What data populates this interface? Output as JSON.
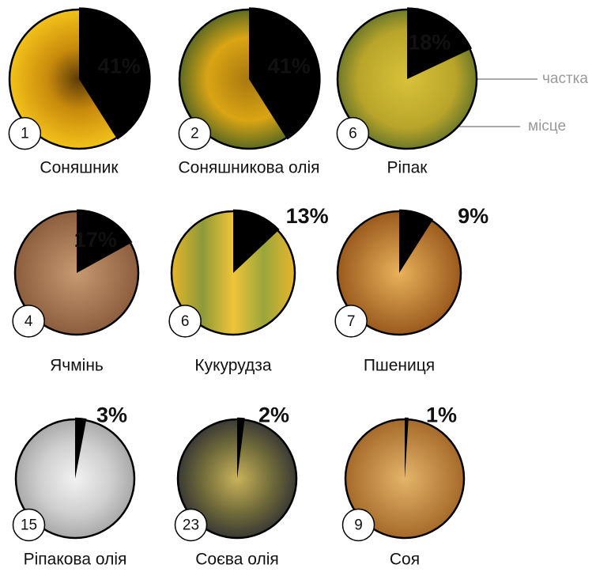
{
  "chart_data": {
    "type": "pie",
    "categories": [
      "Соняшник",
      "Соняшникова олія",
      "Ріпак",
      "Ячмінь",
      "Кукурудза",
      "Пшениця",
      "Ріпакова олія",
      "Соєва олія",
      "Соя"
    ],
    "values": [
      41,
      41,
      18,
      17,
      13,
      9,
      3,
      2,
      1
    ],
    "value_labels": [
      "41%",
      "41%",
      "18%",
      "17%",
      "13%",
      "9%",
      "3%",
      "2%",
      "1%"
    ],
    "ranks": [
      1,
      2,
      6,
      4,
      6,
      7,
      15,
      23,
      9
    ],
    "color": "#000000",
    "legend": {
      "share": "частка",
      "rank": "місце"
    }
  }
}
